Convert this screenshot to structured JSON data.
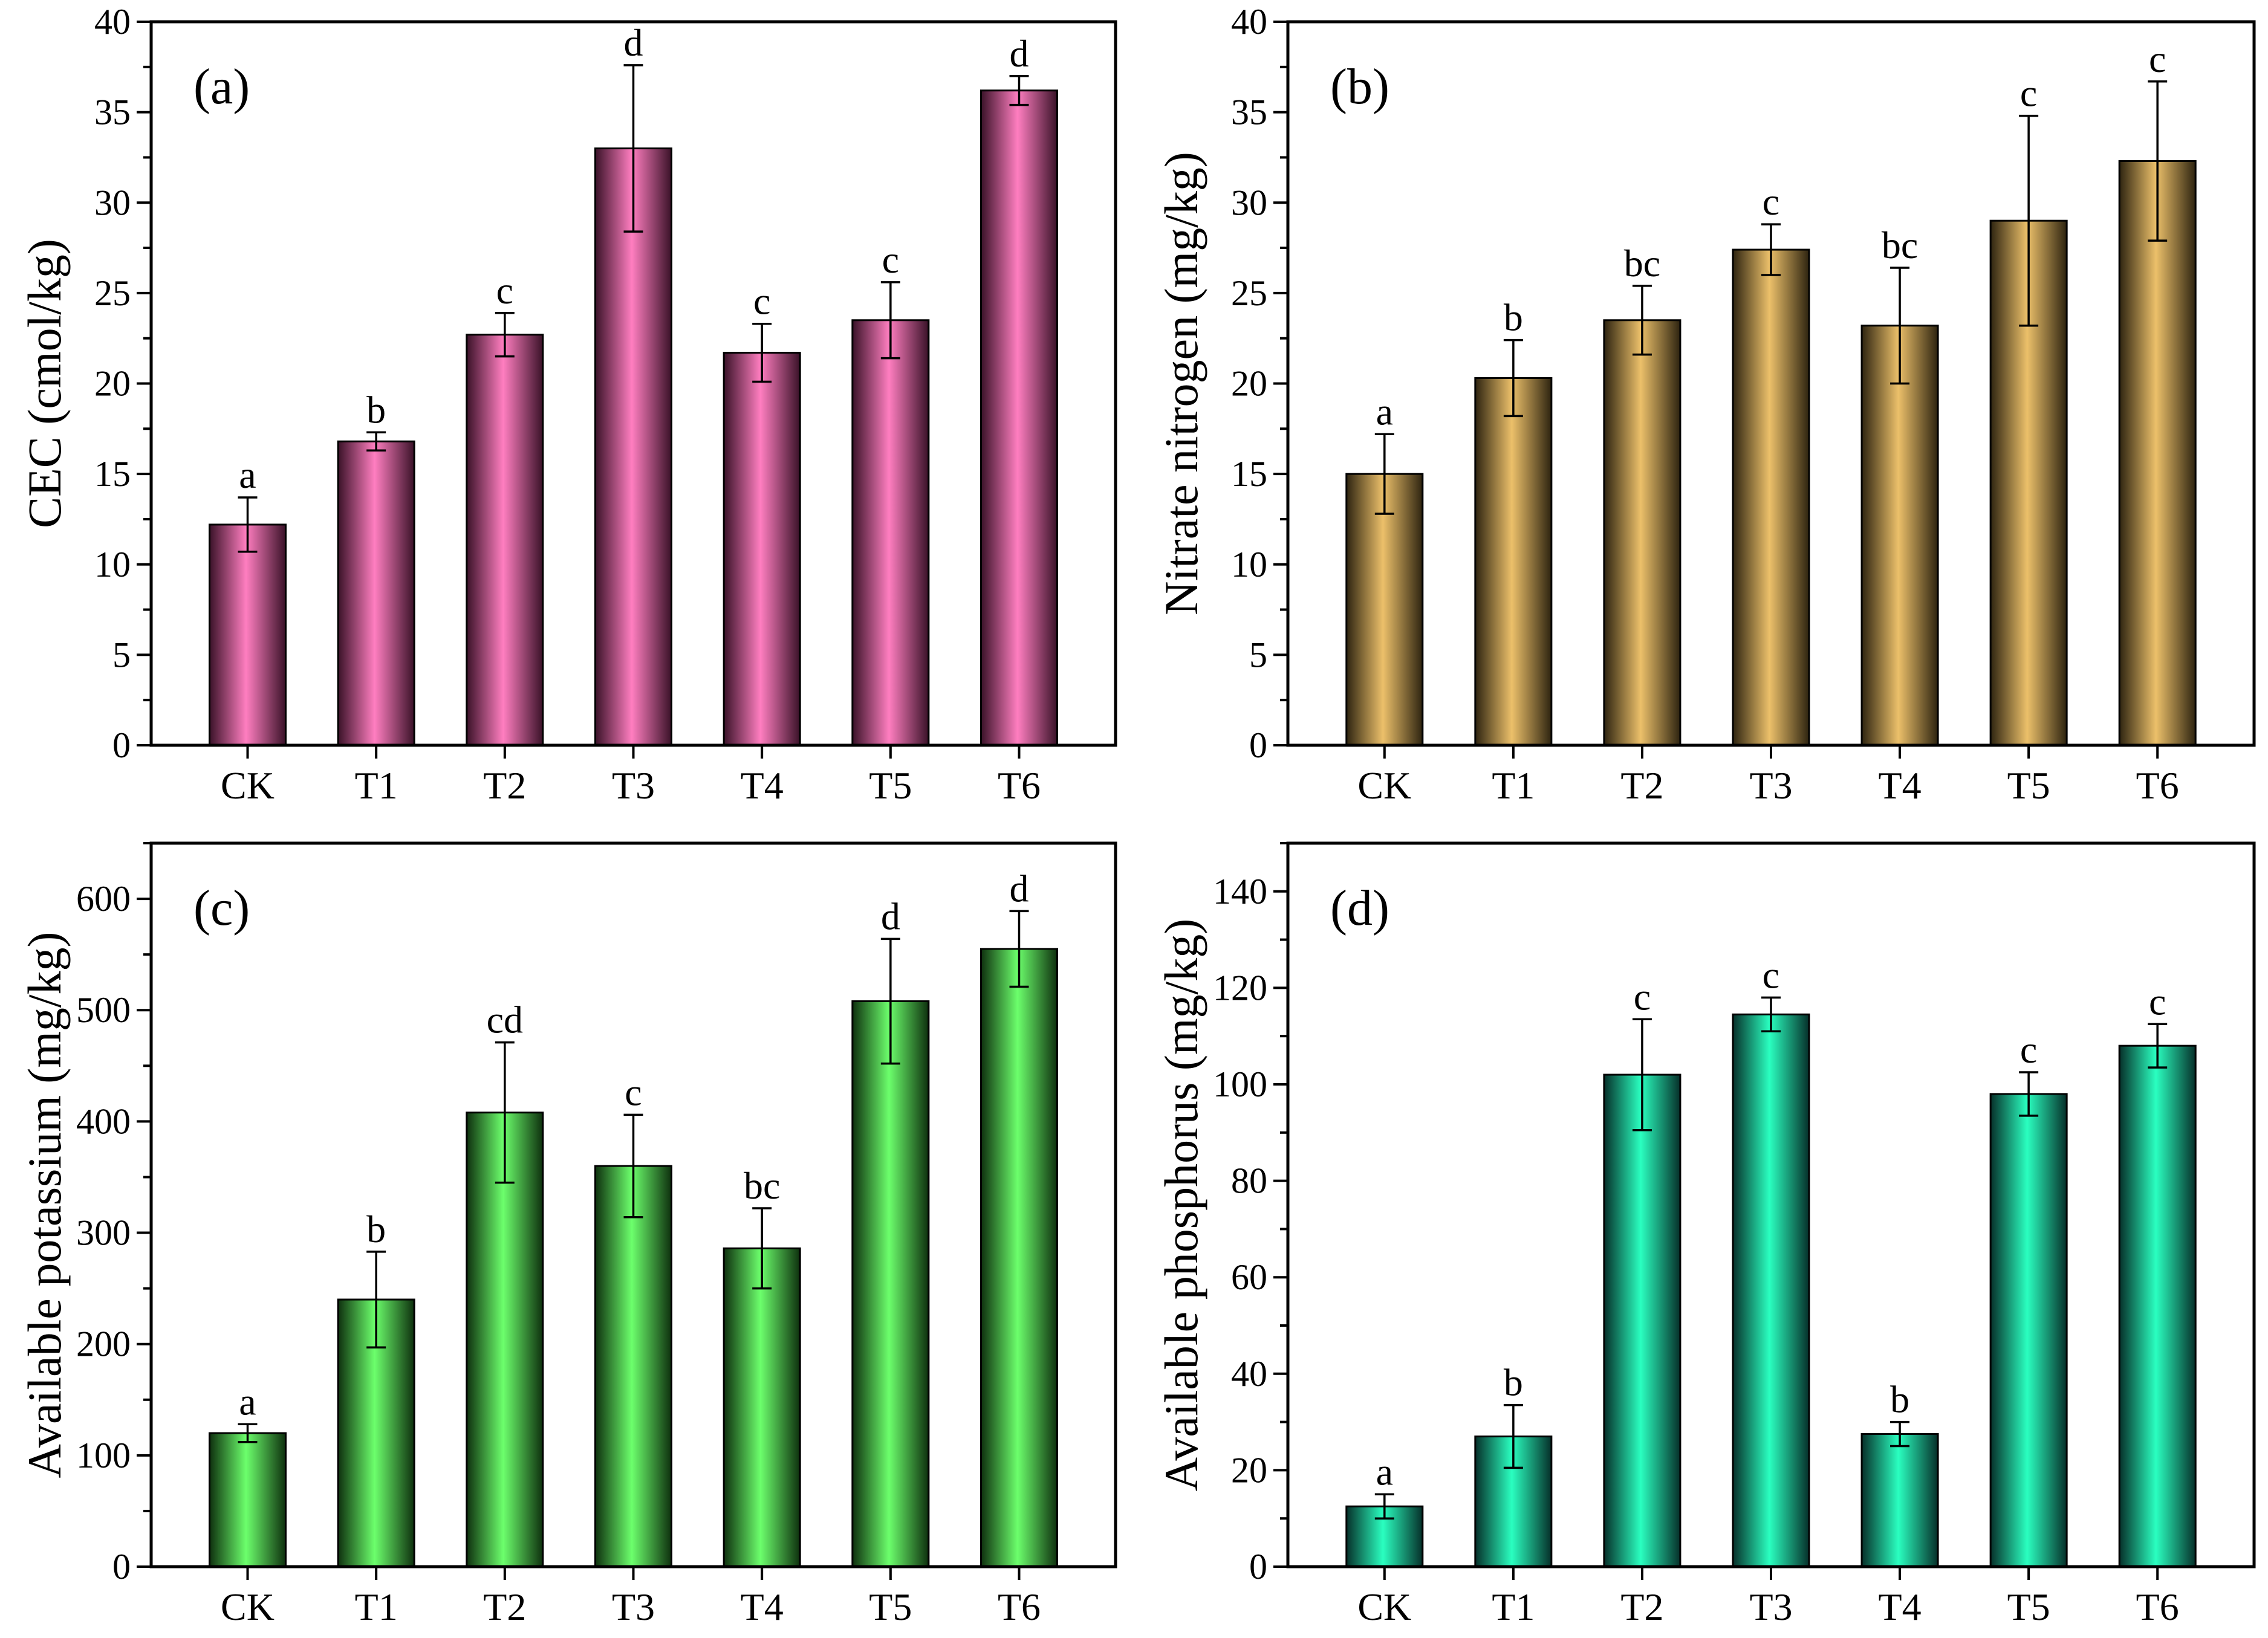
{
  "chart_data": [
    {
      "type": "bar",
      "panel_label": "(a)",
      "categories": [
        "CK",
        "T1",
        "T2",
        "T3",
        "T4",
        "T5",
        "T6"
      ],
      "values": [
        12.2,
        16.8,
        22.7,
        33.0,
        21.7,
        23.5,
        36.2
      ],
      "errors": [
        1.5,
        0.5,
        1.2,
        4.6,
        1.6,
        2.1,
        0.8
      ],
      "significance": [
        "a",
        "b",
        "c",
        "d",
        "c",
        "c",
        "d"
      ],
      "ylabel": "CEC (cmol/kg)",
      "ylim": [
        0,
        40
      ],
      "yticks": [
        0,
        5,
        10,
        15,
        20,
        25,
        30,
        35,
        40
      ],
      "color": "#ff7ec0",
      "shade": "#3a1228"
    },
    {
      "type": "bar",
      "panel_label": "(b)",
      "categories": [
        "CK",
        "T1",
        "T2",
        "T3",
        "T4",
        "T5",
        "T6"
      ],
      "values": [
        15.0,
        20.3,
        23.5,
        27.4,
        23.2,
        29.0,
        32.3
      ],
      "errors": [
        2.2,
        2.1,
        1.9,
        1.4,
        3.2,
        5.8,
        4.4
      ],
      "significance": [
        "a",
        "b",
        "bc",
        "c",
        "bc",
        "c",
        "c"
      ],
      "ylabel": "Nitrate nitrogen (mg/kg)",
      "ylim": [
        0,
        40
      ],
      "yticks": [
        0,
        5,
        10,
        15,
        20,
        25,
        30,
        35,
        40
      ],
      "color": "#ecc06a",
      "shade": "#2e2410"
    },
    {
      "type": "bar",
      "panel_label": "(c)",
      "categories": [
        "CK",
        "T1",
        "T2",
        "T3",
        "T4",
        "T5",
        "T6"
      ],
      "values": [
        120,
        240,
        408,
        360,
        286,
        508,
        555
      ],
      "errors": [
        8,
        43,
        63,
        46,
        36,
        56,
        34
      ],
      "significance": [
        "a",
        "b",
        "cd",
        "c",
        "bc",
        "d",
        "d"
      ],
      "ylabel": "Available potassium (mg/kg)",
      "ylim": [
        0,
        650
      ],
      "yticks": [
        0,
        100,
        200,
        300,
        400,
        500,
        600
      ],
      "color": "#6cff6c",
      "shade": "#0e300e"
    },
    {
      "type": "bar",
      "panel_label": "(d)",
      "categories": [
        "CK",
        "T1",
        "T2",
        "T3",
        "T4",
        "T5",
        "T6"
      ],
      "values": [
        12.5,
        27.0,
        102.0,
        114.5,
        27.5,
        98.0,
        108.0
      ],
      "errors": [
        2.5,
        6.5,
        11.5,
        3.5,
        2.5,
        4.5,
        4.5
      ],
      "significance": [
        "a",
        "b",
        "c",
        "c",
        "b",
        "c",
        "c"
      ],
      "ylabel": "Available phosphorus (mg/kg)",
      "ylim": [
        0,
        150
      ],
      "yticks": [
        0,
        20,
        40,
        60,
        80,
        100,
        120,
        140
      ],
      "color": "#2affc0",
      "shade": "#06302a"
    }
  ]
}
